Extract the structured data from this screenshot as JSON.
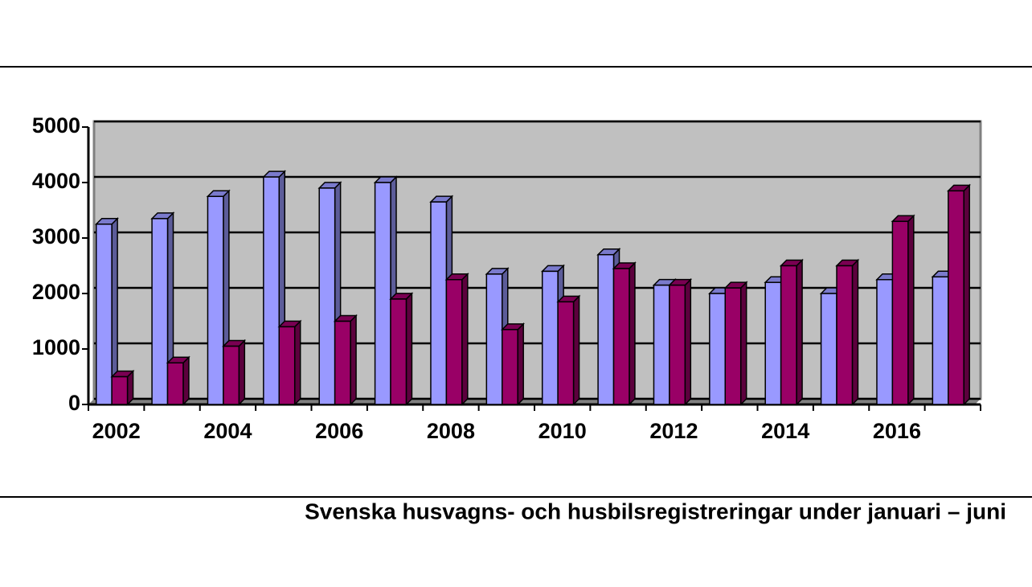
{
  "chart_data": {
    "type": "bar3d",
    "title": "Svenska husvagns- och husbilsregistreringar under januari – juni",
    "categories": [
      "2002",
      null,
      "2004",
      null,
      "2006",
      null,
      "2008",
      null,
      "2010",
      null,
      "2012",
      null,
      "2014",
      null,
      "2016",
      null
    ],
    "series": [
      {
        "color": "#9999ff",
        "values": [
          3250,
          3350,
          3750,
          4100,
          3900,
          4000,
          3650,
          2350,
          2400,
          2700,
          2150,
          2000,
          2200,
          2000,
          2250,
          2300
        ]
      },
      {
        "color": "#990066",
        "values": [
          500,
          750,
          1050,
          1400,
          1500,
          1900,
          2250,
          1350,
          1850,
          2450,
          2150,
          2100,
          2500,
          2500,
          3300,
          3850
        ]
      }
    ],
    "ylim": [
      0,
      5000
    ],
    "yticks": [
      0,
      1000,
      2000,
      3000,
      4000,
      5000
    ],
    "grid": true
  }
}
